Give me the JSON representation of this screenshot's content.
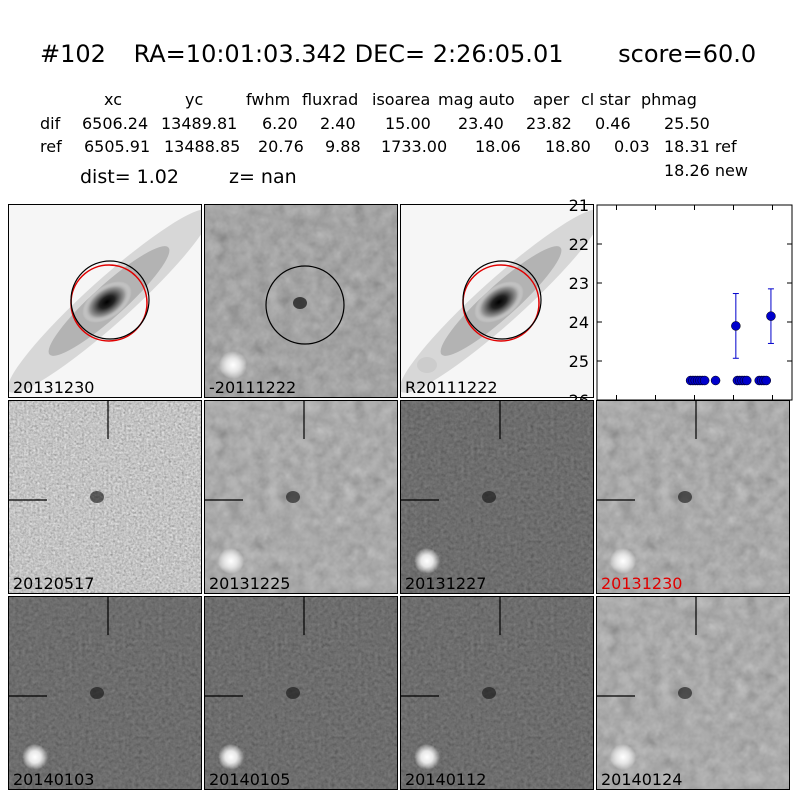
{
  "header": {
    "id": "#102",
    "coords": "RA=10:01:03.342 DEC= 2:26:05.01",
    "score": "score=60.0"
  },
  "table": {
    "columns": [
      "xc",
      "yc",
      "fwhm",
      "fluxrad",
      "isoarea",
      "mag auto",
      "aper",
      "cl star",
      "phmag"
    ],
    "rows": [
      {
        "name": "dif",
        "values": [
          "6506.24",
          "13489.81",
          "6.20",
          "2.40",
          "15.00",
          "23.40",
          "23.82",
          "0.46",
          "25.50"
        ]
      },
      {
        "name": "ref",
        "values": [
          "6505.91",
          "13488.85",
          "20.76",
          "9.88",
          "1733.00",
          "18.06",
          "18.80",
          "0.03",
          "18.31 ref"
        ]
      }
    ],
    "extra": "18.26 new"
  },
  "info": {
    "dist": "dist=  1.02",
    "z": "z=   nan"
  },
  "panels": {
    "top": [
      {
        "label": "20131230",
        "kind": "galaxy",
        "red": false
      },
      {
        "label": "-20111222",
        "kind": "diff",
        "red": false
      },
      {
        "label": "R20111222",
        "kind": "galaxy",
        "red": false
      }
    ],
    "grid": [
      {
        "label": "20120517",
        "tone": "light",
        "red": false
      },
      {
        "label": "20131225",
        "tone": "mid",
        "red": false
      },
      {
        "label": "20131227",
        "tone": "dark",
        "red": false
      },
      {
        "label": "20131230",
        "tone": "mid",
        "red": true
      },
      {
        "label": "20140103",
        "tone": "dark",
        "red": false
      },
      {
        "label": "20140105",
        "tone": "dark",
        "red": false
      },
      {
        "label": "20140112",
        "tone": "dark",
        "red": false
      },
      {
        "label": "20140124",
        "tone": "mid",
        "red": false
      }
    ]
  },
  "chart_data": {
    "type": "scatter",
    "title": "",
    "xlabel": "",
    "ylabel": "",
    "xlim": [
      -125,
      125
    ],
    "ylim": [
      26,
      21
    ],
    "xticks": [
      -100,
      -50,
      0,
      50,
      100
    ],
    "yticks": [
      21,
      22,
      23,
      24,
      25,
      26
    ],
    "grid": false,
    "color": "#0000cc",
    "points": [
      {
        "x": -5,
        "y": 25.5
      },
      {
        "x": -2,
        "y": 25.5
      },
      {
        "x": 1,
        "y": 25.5
      },
      {
        "x": 4,
        "y": 25.5
      },
      {
        "x": 7,
        "y": 25.5
      },
      {
        "x": 10,
        "y": 25.5
      },
      {
        "x": 13,
        "y": 25.5
      },
      {
        "x": 27,
        "y": 25.5
      },
      {
        "x": 53,
        "y": 24.1,
        "err": 0.83
      },
      {
        "x": 55,
        "y": 25.5
      },
      {
        "x": 58,
        "y": 25.5
      },
      {
        "x": 61,
        "y": 25.5
      },
      {
        "x": 64,
        "y": 25.5
      },
      {
        "x": 67,
        "y": 25.5
      },
      {
        "x": 83,
        "y": 25.5
      },
      {
        "x": 86,
        "y": 25.5
      },
      {
        "x": 89,
        "y": 25.5
      },
      {
        "x": 92,
        "y": 25.5
      },
      {
        "x": 98,
        "y": 23.85,
        "err": 0.7
      }
    ]
  }
}
